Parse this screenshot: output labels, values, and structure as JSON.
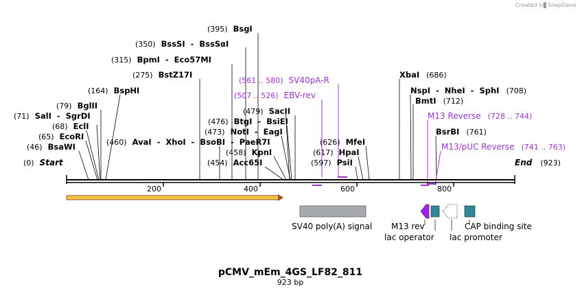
{
  "credit": {
    "created_by": "Created by",
    "brand": "SnapGene"
  },
  "title": "pCMV_mEm_4GS_LF82_811",
  "length_label": "923 bp",
  "sequence_length": 923,
  "ruler": {
    "ticks": [
      200,
      400,
      600,
      800
    ],
    "start_label": "Start",
    "end_label": "End",
    "start_pos": "(0)",
    "end_pos": "(923)"
  },
  "sites": [
    {
      "id": "bsgi",
      "pos": "(395)",
      "label": "BsgI",
      "bp": 395
    },
    {
      "id": "bsssi",
      "pos": "(350)",
      "label": "BssSI  -  BssSαI",
      "bp": 350
    },
    {
      "id": "bpmi",
      "pos": "(315)",
      "label": "BpmI  -  Eco57MI",
      "bp": 315
    },
    {
      "id": "bstz17i",
      "pos": "(275)",
      "label": "BstZ17I",
      "bp": 275
    },
    {
      "id": "bsphi",
      "pos": "(164)",
      "label": "BspHI",
      "bp": 164
    },
    {
      "id": "bglii",
      "pos": "(79)",
      "label": "BglII",
      "bp": 79
    },
    {
      "id": "sali",
      "pos": "(71)",
      "label": "SalI  -  SgrDI",
      "bp": 71
    },
    {
      "id": "ecli",
      "pos": "(68)",
      "label": "EclI",
      "bp": 68
    },
    {
      "id": "ecori",
      "pos": "(65)",
      "label": "EcoRI",
      "bp": 65
    },
    {
      "id": "bsawi",
      "pos": "(46)",
      "label": "BsaWI",
      "bp": 46
    },
    {
      "id": "avai",
      "pos": "(460)",
      "label": "AvaI  -  XhoI  -  BsoBI  -  PaeR7I",
      "bp": 460
    },
    {
      "id": "btgi",
      "pos": "(476)",
      "label": "BtgI  -  BsiEI",
      "bp": 476
    },
    {
      "id": "noti",
      "pos": "(473)",
      "label": "NotI  -  EagI",
      "bp": 473
    },
    {
      "id": "kpni",
      "pos": "(458)",
      "label": "KpnI",
      "bp": 458
    },
    {
      "id": "acc65i",
      "pos": "(454)",
      "label": "Acc65I",
      "bp": 454
    },
    {
      "id": "sacii",
      "pos": "(479)",
      "label": "SacII",
      "bp": 479
    },
    {
      "id": "mfei",
      "pos": "(626)",
      "label": "MfeI",
      "bp": 626
    },
    {
      "id": "hpai",
      "pos": "(617)",
      "label": "HpaI",
      "bp": 617
    },
    {
      "id": "psii",
      "pos": "(597)",
      "label": "PsiI",
      "bp": 597
    },
    {
      "id": "xbai",
      "pos": "(686)",
      "label": "XbaI",
      "bp": 686
    },
    {
      "id": "nspi",
      "pos": "(708)",
      "label": "NspI  -  NheI  -  SphI",
      "bp": 708
    },
    {
      "id": "bmti",
      "pos": "(712)",
      "label": "BmtI",
      "bp": 712
    },
    {
      "id": "bsrbi",
      "pos": "(761)",
      "label": "BsrBI",
      "bp": 761
    }
  ],
  "primers": [
    {
      "id": "sv40pa-r",
      "range": "(561 .. 580)",
      "label": "SV40pA-R",
      "start": 561,
      "end": 580
    },
    {
      "id": "ebv-rev",
      "range": "(507 .. 526)",
      "label": "EBV-rev",
      "start": 507,
      "end": 526
    },
    {
      "id": "m13-reverse",
      "range": "(728 .. 744)",
      "label": "M13 Reverse",
      "start": 728,
      "end": 744
    },
    {
      "id": "m13-puc-reverse",
      "range": "(741 .. 763)",
      "label": "M13/pUC Reverse",
      "start": 741,
      "end": 763
    }
  ],
  "features": [
    {
      "id": "sv40-polya",
      "label": "SV40 poly(A) signal"
    },
    {
      "id": "m13-rev",
      "label": "M13 rev"
    },
    {
      "id": "lac-operator",
      "label": "lac operator"
    },
    {
      "id": "lac-promoter",
      "label": "lac promoter"
    },
    {
      "id": "cap-binding-site",
      "label": "CAP binding site"
    }
  ],
  "colors": {
    "primer": "#9933cc",
    "orf": "#f5c242",
    "feature_gray": "#a7a9ac",
    "feature_teal": "#2e8a99",
    "m13rev": "#a020f0"
  }
}
